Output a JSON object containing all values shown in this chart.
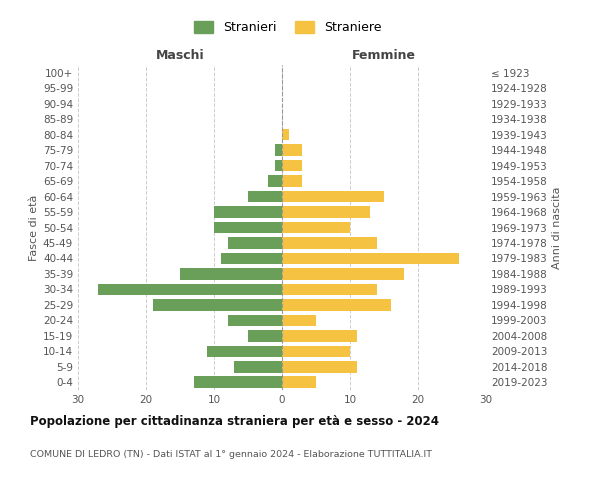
{
  "age_groups": [
    "0-4",
    "5-9",
    "10-14",
    "15-19",
    "20-24",
    "25-29",
    "30-34",
    "35-39",
    "40-44",
    "45-49",
    "50-54",
    "55-59",
    "60-64",
    "65-69",
    "70-74",
    "75-79",
    "80-84",
    "85-89",
    "90-94",
    "95-99",
    "100+"
  ],
  "birth_years": [
    "2019-2023",
    "2014-2018",
    "2009-2013",
    "2004-2008",
    "1999-2003",
    "1994-1998",
    "1989-1993",
    "1984-1988",
    "1979-1983",
    "1974-1978",
    "1969-1973",
    "1964-1968",
    "1959-1963",
    "1954-1958",
    "1949-1953",
    "1944-1948",
    "1939-1943",
    "1934-1938",
    "1929-1933",
    "1924-1928",
    "≤ 1923"
  ],
  "males": [
    13,
    7,
    11,
    5,
    8,
    19,
    27,
    15,
    9,
    8,
    10,
    10,
    5,
    2,
    1,
    1,
    0,
    0,
    0,
    0,
    0
  ],
  "females": [
    5,
    11,
    10,
    11,
    5,
    16,
    14,
    18,
    26,
    14,
    10,
    13,
    15,
    3,
    3,
    3,
    1,
    0,
    0,
    0,
    0
  ],
  "male_color": "#6a9f5a",
  "female_color": "#f5c242",
  "title": "Popolazione per cittadinanza straniera per età e sesso - 2024",
  "subtitle": "COMUNE DI LEDRO (TN) - Dati ISTAT al 1° gennaio 2024 - Elaborazione TUTTITALIA.IT",
  "xlabel_left": "Maschi",
  "xlabel_right": "Femmine",
  "ylabel_left": "Fasce di età",
  "ylabel_right": "Anni di nascita",
  "xlim": 30,
  "legend_stranieri": "Stranieri",
  "legend_straniere": "Straniere",
  "bg_color": "#ffffff",
  "grid_color": "#cccccc",
  "tick_color": "#888888"
}
